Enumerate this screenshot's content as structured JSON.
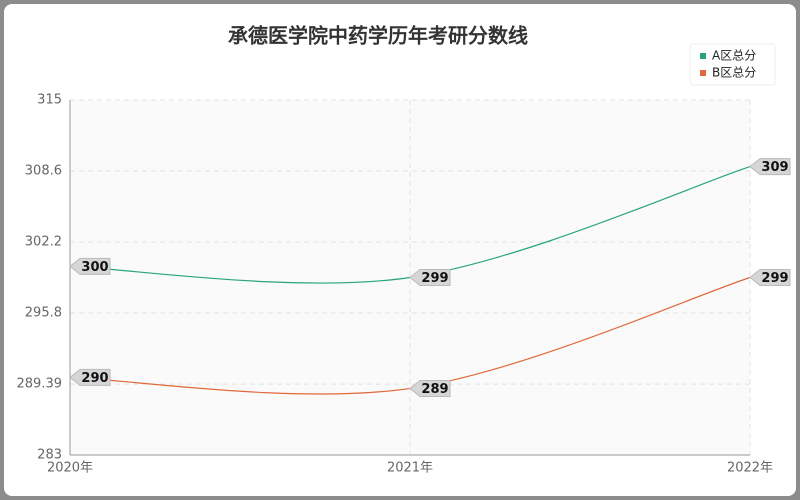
{
  "chart_data": {
    "type": "line",
    "title": "承德医学院中药学历年考研分数线",
    "categories": [
      "2020年",
      "2021年",
      "2022年"
    ],
    "series": [
      {
        "name": "A区总分",
        "color": "#27a57a",
        "values": [
          300,
          299,
          309
        ]
      },
      {
        "name": "B区总分",
        "color": "#e0683a",
        "values": [
          290,
          289,
          299
        ]
      }
    ],
    "ylim": [
      283,
      315
    ],
    "yticks": [
      283,
      289.39,
      295.8,
      302.2,
      308.6,
      315
    ],
    "grid": true,
    "legend": "top-right",
    "smooth": true
  }
}
